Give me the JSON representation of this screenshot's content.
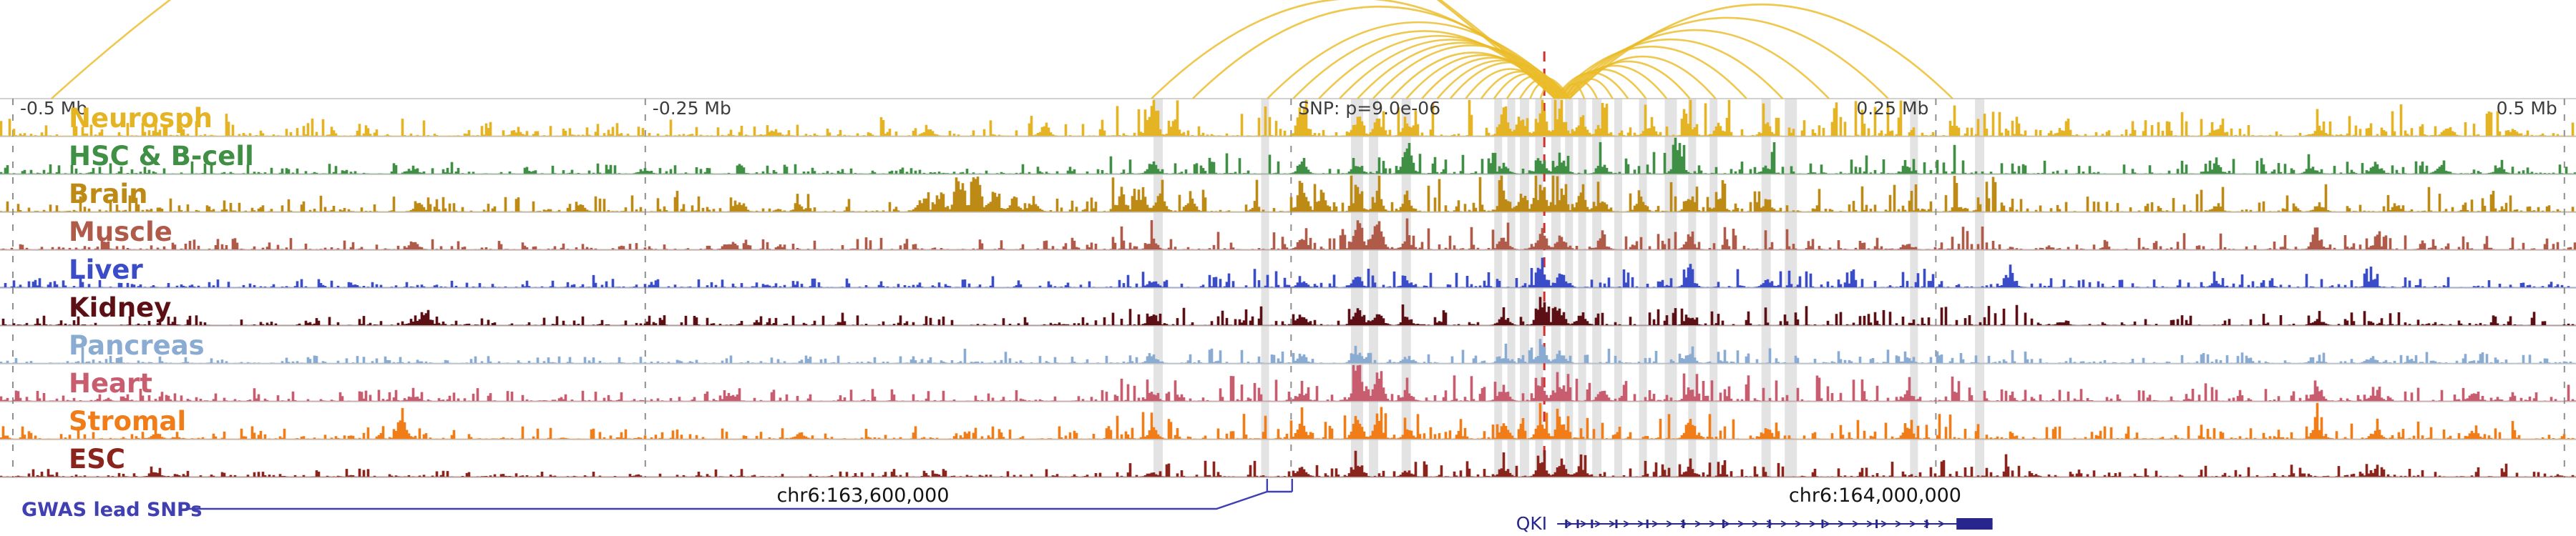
{
  "chart_data": {
    "type": "genome-tracks",
    "description": "Epigenomic signal tracks around a GWAS SNP with chromatin interaction arcs to the QKI promoter",
    "axis_ticks": [
      {
        "label": "-0.5 Mb",
        "x": 0.005,
        "side": "right"
      },
      {
        "label": "-0.25 Mb",
        "x": 0.2505,
        "side": "right"
      },
      {
        "label": "SNP: p=9.0e-06",
        "x": 0.5012,
        "side": "right"
      },
      {
        "label": "0.25 Mb",
        "x": 0.7515,
        "side": "left"
      },
      {
        "label": "0.5 Mb",
        "x": 0.9955,
        "side": "left"
      }
    ],
    "snp_marker": {
      "line_x": 0.5995,
      "color": "#d03030"
    },
    "coordinates": [
      {
        "label": "chr6:163,600,000",
        "x": 0.335
      },
      {
        "label": "chr6:164,000,000",
        "x": 0.7279
      }
    ],
    "interaction_arcs": {
      "color": "#eabc28",
      "anchor": 0.6065,
      "targets": [
        -0.1,
        0.02,
        0.447,
        0.463,
        0.492,
        0.502,
        0.512,
        0.52,
        0.527,
        0.533,
        0.54,
        0.546,
        0.552,
        0.558,
        0.563,
        0.569,
        0.575,
        0.58,
        0.585,
        0.59,
        0.594,
        0.598,
        0.615,
        0.62,
        0.626,
        0.632,
        0.639,
        0.647,
        0.656,
        0.666,
        0.678,
        0.692,
        0.71,
        0.733,
        0.758
      ]
    },
    "snp_highlights": {
      "color": "#dedede",
      "bands": [
        {
          "x": 0.4496,
          "w": 13
        },
        {
          "x": 0.4911,
          "w": 11
        },
        {
          "x": 0.5268,
          "w": 17
        },
        {
          "x": 0.5332,
          "w": 13
        },
        {
          "x": 0.5459,
          "w": 13
        },
        {
          "x": 0.5816,
          "w": 11
        },
        {
          "x": 0.5867,
          "w": 11
        },
        {
          "x": 0.5918,
          "w": 13
        },
        {
          "x": 0.5975,
          "w": 11
        },
        {
          "x": 0.604,
          "w": 13
        },
        {
          "x": 0.6091,
          "w": 11
        },
        {
          "x": 0.6142,
          "w": 11
        },
        {
          "x": 0.6199,
          "w": 13
        },
        {
          "x": 0.6282,
          "w": 11
        },
        {
          "x": 0.6378,
          "w": 11
        },
        {
          "x": 0.6486,
          "w": 17
        },
        {
          "x": 0.6569,
          "w": 11
        },
        {
          "x": 0.6652,
          "w": 11
        },
        {
          "x": 0.6856,
          "w": 13
        },
        {
          "x": 0.6952,
          "w": 17
        },
        {
          "x": 0.743,
          "w": 11
        },
        {
          "x": 0.7685,
          "w": 13
        }
      ]
    },
    "tracks": [
      {
        "id": "neurosph",
        "label": "Neurosph",
        "color": "#e4b424",
        "noise": 1.5,
        "peaks": [
          {
            "x": 0.447,
            "h": 0.8
          },
          {
            "x": 0.4555,
            "h": 0.35
          },
          {
            "x": 0.505,
            "h": 0.75
          },
          {
            "x": 0.5265,
            "h": 0.5
          },
          {
            "x": 0.5345,
            "h": 0.4
          },
          {
            "x": 0.546,
            "h": 0.45
          },
          {
            "x": 0.5835,
            "h": 0.8
          },
          {
            "x": 0.5905,
            "h": 0.65
          },
          {
            "x": 0.598,
            "h": 0.95
          },
          {
            "x": 0.6055,
            "h": 0.7
          },
          {
            "x": 0.6135,
            "h": 0.5
          },
          {
            "x": 0.6215,
            "h": 0.4
          },
          {
            "x": 0.64,
            "h": 0.35
          },
          {
            "x": 0.6555,
            "h": 0.4
          },
          {
            "x": 0.667,
            "h": 0.3
          },
          {
            "x": 0.6855,
            "h": 0.3
          },
          {
            "x": 0.36,
            "h": 0.22
          },
          {
            "x": 0.405,
            "h": 0.28
          },
          {
            "x": 0.3,
            "h": 0.18
          },
          {
            "x": 0.2,
            "h": 0.14
          },
          {
            "x": 0.8,
            "h": 0.2
          },
          {
            "x": 0.86,
            "h": 0.2
          },
          {
            "x": 0.9,
            "h": 0.26
          },
          {
            "x": 0.95,
            "h": 0.2
          },
          {
            "x": 0.975,
            "h": 0.16
          }
        ]
      },
      {
        "id": "hsc-b-cell",
        "label": "HSC & B-cell",
        "color": "#3f8f45",
        "noise": 0.9,
        "peaks": [
          {
            "x": 0.447,
            "h": 0.28
          },
          {
            "x": 0.505,
            "h": 0.3
          },
          {
            "x": 0.5265,
            "h": 0.32
          },
          {
            "x": 0.546,
            "h": 0.9
          },
          {
            "x": 0.5835,
            "h": 0.28
          },
          {
            "x": 0.598,
            "h": 0.38
          },
          {
            "x": 0.6055,
            "h": 0.5
          },
          {
            "x": 0.6215,
            "h": 0.28
          },
          {
            "x": 0.651,
            "h": 0.85
          },
          {
            "x": 0.6855,
            "h": 0.22
          },
          {
            "x": 0.74,
            "h": 0.18
          },
          {
            "x": 0.86,
            "h": 0.28
          },
          {
            "x": 0.897,
            "h": 0.22
          },
          {
            "x": 0.922,
            "h": 0.32
          },
          {
            "x": 0.947,
            "h": 0.28
          },
          {
            "x": 0.97,
            "h": 0.22
          },
          {
            "x": 0.25,
            "h": 0.12
          },
          {
            "x": 0.16,
            "h": 0.15
          }
        ]
      },
      {
        "id": "brain",
        "label": "Brain",
        "color": "#bd8a16",
        "noise": 1.5,
        "peaks": [
          {
            "x": 0.357,
            "h": 0.4
          },
          {
            "x": 0.3645,
            "h": 0.5
          },
          {
            "x": 0.372,
            "h": 0.7
          },
          {
            "x": 0.3785,
            "h": 0.95
          },
          {
            "x": 0.3855,
            "h": 0.55
          },
          {
            "x": 0.393,
            "h": 0.4
          },
          {
            "x": 0.401,
            "h": 0.3
          },
          {
            "x": 0.435,
            "h": 0.5
          },
          {
            "x": 0.4425,
            "h": 0.55
          },
          {
            "x": 0.45,
            "h": 0.6
          },
          {
            "x": 0.462,
            "h": 0.35
          },
          {
            "x": 0.505,
            "h": 0.75
          },
          {
            "x": 0.513,
            "h": 0.5
          },
          {
            "x": 0.5265,
            "h": 0.48
          },
          {
            "x": 0.5345,
            "h": 0.38
          },
          {
            "x": 0.546,
            "h": 0.42
          },
          {
            "x": 0.5835,
            "h": 0.6
          },
          {
            "x": 0.5905,
            "h": 0.5
          },
          {
            "x": 0.598,
            "h": 0.75
          },
          {
            "x": 0.6055,
            "h": 0.55
          },
          {
            "x": 0.6135,
            "h": 0.42
          },
          {
            "x": 0.6215,
            "h": 0.36
          },
          {
            "x": 0.6365,
            "h": 0.36
          },
          {
            "x": 0.6555,
            "h": 0.45
          },
          {
            "x": 0.667,
            "h": 0.32
          },
          {
            "x": 0.6855,
            "h": 0.28
          },
          {
            "x": 0.162,
            "h": 0.26
          },
          {
            "x": 0.225,
            "h": 0.16
          },
          {
            "x": 0.287,
            "h": 0.2
          },
          {
            "x": 0.31,
            "h": 0.16
          },
          {
            "x": 0.76,
            "h": 0.16
          },
          {
            "x": 0.86,
            "h": 0.16
          },
          {
            "x": 0.9,
            "h": 0.2
          },
          {
            "x": 0.93,
            "h": 0.16
          }
        ]
      },
      {
        "id": "muscle",
        "label": "Muscle",
        "color": "#b05a4a",
        "noise": 1.0,
        "peaks": [
          {
            "x": 0.5265,
            "h": 0.95
          },
          {
            "x": 0.5345,
            "h": 0.78
          },
          {
            "x": 0.505,
            "h": 0.32
          },
          {
            "x": 0.546,
            "h": 0.28
          },
          {
            "x": 0.5835,
            "h": 0.32
          },
          {
            "x": 0.598,
            "h": 0.58
          },
          {
            "x": 0.6055,
            "h": 0.42
          },
          {
            "x": 0.6215,
            "h": 0.24
          },
          {
            "x": 0.6555,
            "h": 0.32
          },
          {
            "x": 0.447,
            "h": 0.26
          },
          {
            "x": 0.899,
            "h": 0.52
          },
          {
            "x": 0.922,
            "h": 0.22
          },
          {
            "x": 0.16,
            "h": 0.2
          },
          {
            "x": 0.283,
            "h": 0.18
          },
          {
            "x": 0.74,
            "h": 0.18
          }
        ]
      },
      {
        "id": "liver",
        "label": "Liver",
        "color": "#3a4cc8",
        "noise": 0.8,
        "peaks": [
          {
            "x": 0.5265,
            "h": 0.28
          },
          {
            "x": 0.546,
            "h": 0.2
          },
          {
            "x": 0.598,
            "h": 0.5
          },
          {
            "x": 0.6055,
            "h": 0.38
          },
          {
            "x": 0.6555,
            "h": 0.45
          },
          {
            "x": 0.78,
            "h": 0.4
          },
          {
            "x": 0.92,
            "h": 0.26
          },
          {
            "x": 0.447,
            "h": 0.18
          },
          {
            "x": 0.505,
            "h": 0.2
          },
          {
            "x": 0.6855,
            "h": 0.18
          },
          {
            "x": 0.86,
            "h": 0.16
          }
        ]
      },
      {
        "id": "kidney",
        "label": "Kidney",
        "color": "#5c1015",
        "noise": 0.85,
        "peaks": [
          {
            "x": 0.5265,
            "h": 0.6
          },
          {
            "x": 0.5345,
            "h": 0.4
          },
          {
            "x": 0.598,
            "h": 0.68
          },
          {
            "x": 0.6055,
            "h": 0.42
          },
          {
            "x": 0.6135,
            "h": 0.32
          },
          {
            "x": 0.165,
            "h": 0.4
          },
          {
            "x": 0.447,
            "h": 0.26
          },
          {
            "x": 0.6555,
            "h": 0.28
          },
          {
            "x": 0.505,
            "h": 0.28
          },
          {
            "x": 0.546,
            "h": 0.22
          },
          {
            "x": 0.5835,
            "h": 0.28
          },
          {
            "x": 0.8,
            "h": 0.12
          },
          {
            "x": 0.9,
            "h": 0.15
          }
        ]
      },
      {
        "id": "pancreas",
        "label": "Pancreas",
        "color": "#8aabd2",
        "noise": 0.65,
        "peaks": [
          {
            "x": 0.5265,
            "h": 0.42
          },
          {
            "x": 0.598,
            "h": 0.48
          },
          {
            "x": 0.6055,
            "h": 0.32
          },
          {
            "x": 0.6555,
            "h": 0.28
          },
          {
            "x": 0.447,
            "h": 0.2
          },
          {
            "x": 0.505,
            "h": 0.22
          },
          {
            "x": 0.546,
            "h": 0.18
          },
          {
            "x": 0.5835,
            "h": 0.22
          },
          {
            "x": 0.92,
            "h": 0.15
          },
          {
            "x": 0.74,
            "h": 0.12
          }
        ]
      },
      {
        "id": "heart",
        "label": "Heart",
        "color": "#c75d6e",
        "noise": 1.1,
        "peaks": [
          {
            "x": 0.5265,
            "h": 0.95
          },
          {
            "x": 0.5345,
            "h": 0.82
          },
          {
            "x": 0.505,
            "h": 0.28
          },
          {
            "x": 0.546,
            "h": 0.32
          },
          {
            "x": 0.5835,
            "h": 0.38
          },
          {
            "x": 0.598,
            "h": 0.58
          },
          {
            "x": 0.6055,
            "h": 0.48
          },
          {
            "x": 0.6215,
            "h": 0.28
          },
          {
            "x": 0.6555,
            "h": 0.38
          },
          {
            "x": 0.74,
            "h": 0.28
          },
          {
            "x": 0.899,
            "h": 0.5
          },
          {
            "x": 0.922,
            "h": 0.26
          },
          {
            "x": 0.283,
            "h": 0.22
          },
          {
            "x": 0.16,
            "h": 0.18
          },
          {
            "x": 0.96,
            "h": 0.2
          },
          {
            "x": 0.447,
            "h": 0.24
          }
        ]
      },
      {
        "id": "stromal",
        "label": "Stromal",
        "color": "#f07d18",
        "noise": 1.1,
        "peaks": [
          {
            "x": 0.156,
            "h": 0.7
          },
          {
            "x": 0.5265,
            "h": 0.58
          },
          {
            "x": 0.5345,
            "h": 0.42
          },
          {
            "x": 0.598,
            "h": 0.58
          },
          {
            "x": 0.6055,
            "h": 0.48
          },
          {
            "x": 0.6555,
            "h": 0.48
          },
          {
            "x": 0.6855,
            "h": 0.28
          },
          {
            "x": 0.74,
            "h": 0.26
          },
          {
            "x": 0.899,
            "h": 0.42
          },
          {
            "x": 0.922,
            "h": 0.28
          },
          {
            "x": 0.96,
            "h": 0.22
          },
          {
            "x": 0.447,
            "h": 0.28
          },
          {
            "x": 0.505,
            "h": 0.32
          },
          {
            "x": 0.546,
            "h": 0.28
          },
          {
            "x": 0.5835,
            "h": 0.32
          },
          {
            "x": 0.06,
            "h": 0.18
          },
          {
            "x": 0.31,
            "h": 0.18
          }
        ]
      },
      {
        "id": "esc",
        "label": "ESC",
        "color": "#8a241c",
        "noise": 0.7,
        "peaks": [
          {
            "x": 0.5265,
            "h": 0.48
          },
          {
            "x": 0.598,
            "h": 0.52
          },
          {
            "x": 0.6055,
            "h": 0.46
          },
          {
            "x": 0.6135,
            "h": 0.32
          },
          {
            "x": 0.6555,
            "h": 0.28
          },
          {
            "x": 0.505,
            "h": 0.22
          },
          {
            "x": 0.546,
            "h": 0.2
          },
          {
            "x": 0.5835,
            "h": 0.28
          },
          {
            "x": 0.06,
            "h": 0.16
          },
          {
            "x": 0.92,
            "h": 0.14
          },
          {
            "x": 0.447,
            "h": 0.16
          }
        ]
      }
    ],
    "gwas_lead_snps": {
      "label": "GWAS lead SNPs",
      "color": "#4040b2",
      "ticks": [
        0.4919,
        0.5016
      ]
    },
    "gene": {
      "name": "QKI",
      "color": "#26268e",
      "start": 0.6045,
      "end": 0.7735,
      "exons": [
        0.608,
        0.6125,
        0.618,
        0.6275,
        0.6395,
        0.6535,
        0.669,
        0.687,
        0.7075,
        0.7285,
        0.748
      ],
      "last_exon": [
        0.7595,
        0.7735
      ]
    },
    "style": {
      "grid_color": "#8f8f8f",
      "separator_color": "#c3c3c3",
      "tick_label_color": "#3d3d3d",
      "coordinate_color": "#141414",
      "background": "#ffffff"
    }
  }
}
